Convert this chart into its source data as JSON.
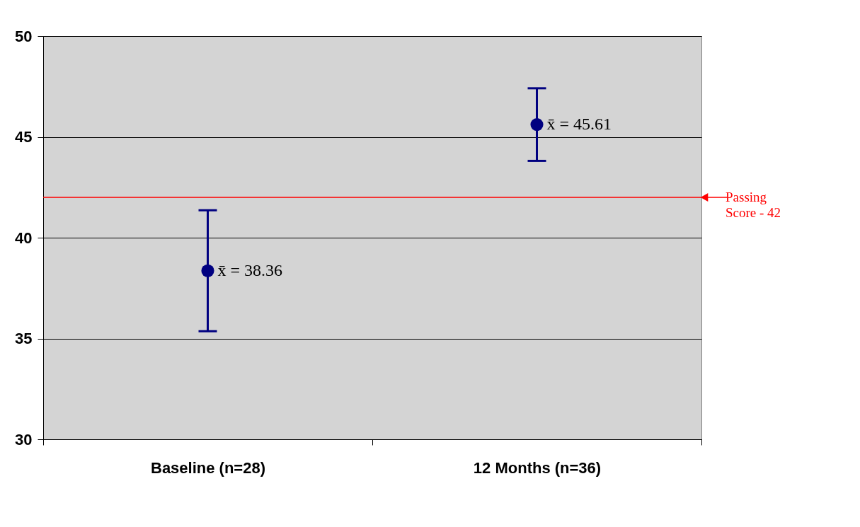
{
  "chart_data": {
    "type": "scatter",
    "categories": [
      "Baseline (n=28)",
      "12 Months (n=36)"
    ],
    "series": [
      {
        "color": "#000080",
        "values": [
          38.36,
          45.61
        ],
        "errors": [
          3.0,
          1.8
        ]
      }
    ],
    "ylim": [
      30,
      50
    ],
    "yticks": [
      30,
      35,
      40,
      45,
      50
    ],
    "grid": "y",
    "marker": "circle",
    "legend": false,
    "ref_lines": [
      {
        "axis": "y",
        "value": 42,
        "label": "Passing Score - 42",
        "color": "#ff0000"
      }
    ],
    "annotations": [
      {
        "text": "x̄  = 38.36",
        "x": "Baseline (n=28)",
        "y": 38.36
      },
      {
        "text": "x̄  = 45.61",
        "x": "12 Months (n=36)",
        "y": 45.61
      }
    ]
  }
}
